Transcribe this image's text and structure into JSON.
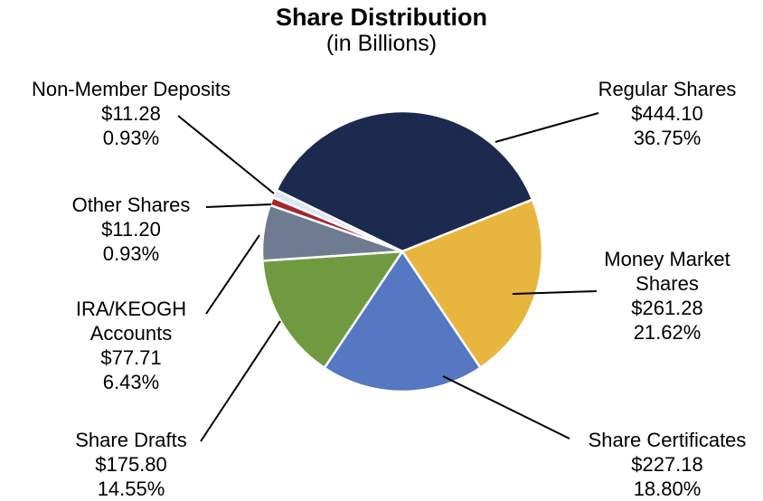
{
  "chart_data": {
    "type": "pie",
    "title": "Share Distribution",
    "subtitle": "(in Billions)",
    "categories": [
      "Regular Shares",
      "Money Market Shares",
      "Share Certificates",
      "Share Drafts",
      "IRA/KEOGH Accounts",
      "Other Shares",
      "Non-Member Deposits"
    ],
    "values": [
      444.1,
      261.28,
      227.18,
      175.8,
      77.71,
      11.2,
      11.28
    ],
    "value_labels": [
      "$444.10",
      "$261.28",
      "$227.18",
      "$175.80",
      "$77.71",
      "$11.20",
      "$11.28"
    ],
    "percents": [
      36.75,
      21.62,
      18.8,
      14.55,
      6.43,
      0.93,
      0.93
    ],
    "percent_labels": [
      "36.75%",
      "21.62%",
      "18.80%",
      "14.55%",
      "6.43%",
      "0.93%",
      "0.93%"
    ],
    "colors": [
      "#1b2a4e",
      "#e8b63e",
      "#5677c1",
      "#6f9a3f",
      "#6f7b90",
      "#a3282c",
      "#dde4f2"
    ]
  }
}
